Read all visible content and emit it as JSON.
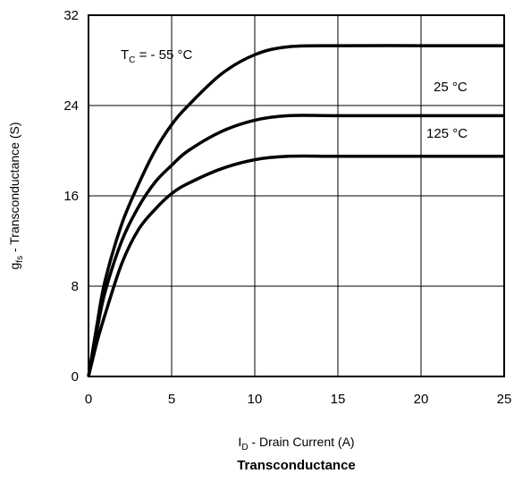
{
  "chart_data": {
    "type": "line",
    "title": "Transconductance",
    "xlabel": {
      "main": "I",
      "sub": "D",
      "rest": " -   Drain Current (A)"
    },
    "ylabel": {
      "main": "g",
      "sub": "fs",
      "rest": " - Transconductance (S)"
    },
    "xlim": [
      0,
      25
    ],
    "ylim": [
      0,
      32
    ],
    "xticks": [
      "0",
      "5",
      "10",
      "15",
      "20",
      "25"
    ],
    "yticks": [
      "0",
      "8",
      "16",
      "24",
      "32"
    ],
    "grid": true,
    "series": [
      {
        "name": "TC = - 55 °C",
        "x": [
          0,
          0.5,
          1,
          2,
          3,
          4,
          5,
          6,
          8,
          10,
          12,
          15,
          20,
          25
        ],
        "y": [
          0,
          4.5,
          8.5,
          13.5,
          17,
          20,
          22.3,
          24,
          26.8,
          28.5,
          29.2,
          29.3,
          29.3,
          29.3
        ]
      },
      {
        "name": "25 °C",
        "x": [
          0,
          0.5,
          1,
          2,
          3,
          4,
          5,
          6,
          8,
          10,
          12,
          15,
          20,
          25
        ],
        "y": [
          0,
          4,
          7.5,
          12,
          15,
          17.2,
          18.7,
          20,
          21.7,
          22.7,
          23.1,
          23.1,
          23.1,
          23.1
        ]
      },
      {
        "name": "125 °C",
        "x": [
          0,
          0.5,
          1,
          2,
          3,
          4,
          5,
          6,
          8,
          10,
          12,
          15,
          20,
          25
        ],
        "y": [
          0,
          3,
          5.5,
          10,
          13,
          14.8,
          16.2,
          17.1,
          18.4,
          19.2,
          19.5,
          19.5,
          19.5,
          19.5
        ]
      }
    ],
    "annotations": [
      {
        "main": "T",
        "sub": "C",
        "rest": " = - 55 °C"
      },
      {
        "main": "25 °C"
      },
      {
        "main": "125 °C"
      }
    ]
  }
}
